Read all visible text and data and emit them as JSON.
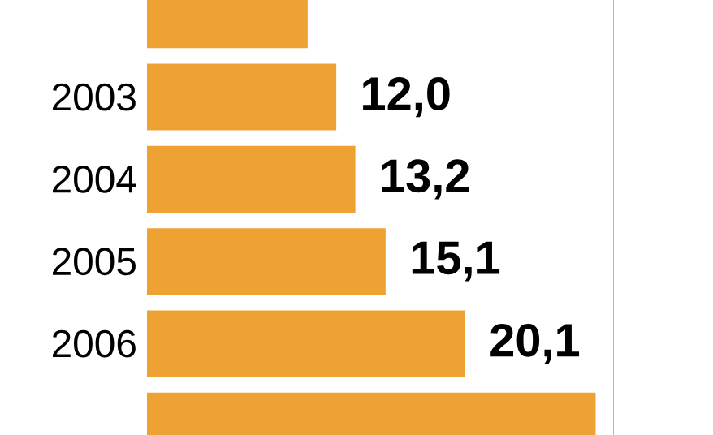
{
  "chart_data": {
    "type": "bar",
    "orientation": "horizontal",
    "categories": [
      null,
      "2003",
      "2004",
      "2005",
      "2006",
      null
    ],
    "values": [
      10.2,
      12.0,
      13.2,
      15.1,
      20.1,
      28.3
    ],
    "value_labels": [
      null,
      "12,0",
      "13,2",
      "15,1",
      "20,1",
      null
    ],
    "color": "#eea233",
    "xlim": [
      0,
      29.4
    ],
    "tick_labels": "y"
  }
}
